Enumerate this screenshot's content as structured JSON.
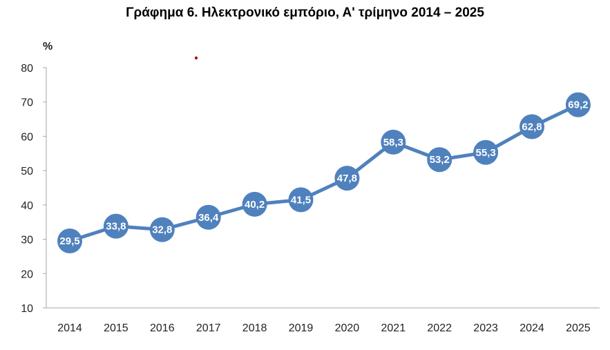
{
  "chart_data": {
    "type": "line",
    "title": "Γράφημα 6. Ηλεκτρονικό εμπόριο, Α' τρίμηνο 2014 – 2025",
    "xlabel": "",
    "ylabel": "%",
    "categories": [
      "2014",
      "2015",
      "2016",
      "2017",
      "2018",
      "2019",
      "2020",
      "2021",
      "2022",
      "2023",
      "2024",
      "2025"
    ],
    "series": [
      {
        "name": "Ηλεκτρονικό εμπόριο",
        "values": [
          29.5,
          33.8,
          32.8,
          36.4,
          40.2,
          41.5,
          47.8,
          58.3,
          53.2,
          55.3,
          62.8,
          69.2
        ],
        "labels": [
          "29,5",
          "33,8",
          "32,8",
          "36,4",
          "40,2",
          "41,5",
          "47,8",
          "58,3",
          "53,2",
          "55,3",
          "62,8",
          "69,2"
        ]
      }
    ],
    "ylim": [
      10,
      80
    ],
    "yticks": [
      10,
      20,
      30,
      40,
      50,
      60,
      70,
      80
    ],
    "grid": false,
    "legend": "none",
    "colors": {
      "line": "#4f81bd",
      "marker": "#4f81bd",
      "label": "#ffffff",
      "axis": "#a6a6a6",
      "dot": "#c00000"
    }
  }
}
